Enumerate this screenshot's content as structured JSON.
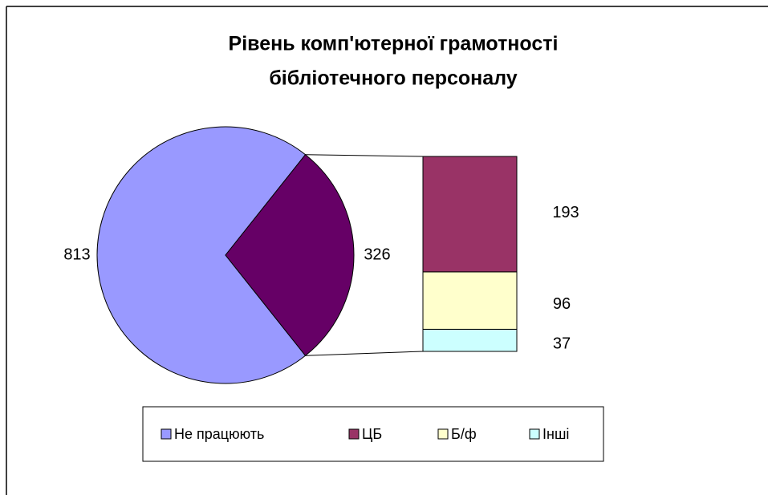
{
  "chart_data": {
    "type": "bar-of-pie",
    "title": [
      "Рівень комп'ютерної грамотності",
      "бібліотечного персоналу"
    ],
    "categories": [
      "Не працюють",
      "ЦБ",
      "Б/ф",
      "Інші"
    ],
    "values": [
      813,
      193,
      96,
      37
    ],
    "colors": [
      "#9999ff",
      "#993366",
      "#ffffcc",
      "#ccffff"
    ],
    "pie_other_value": 326,
    "pie_other_color": "#660066",
    "legend": "bottom"
  }
}
